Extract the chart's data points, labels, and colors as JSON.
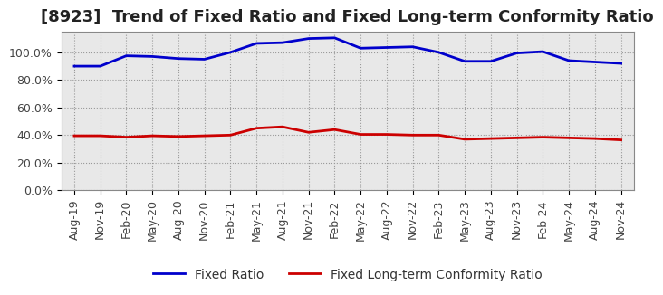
{
  "title": "[8923]  Trend of Fixed Ratio and Fixed Long-term Conformity Ratio",
  "x_labels": [
    "Aug-19",
    "Nov-19",
    "Feb-20",
    "May-20",
    "Aug-20",
    "Nov-20",
    "Feb-21",
    "May-21",
    "Aug-21",
    "Nov-21",
    "Feb-22",
    "May-22",
    "Aug-22",
    "Nov-22",
    "Feb-23",
    "May-23",
    "Aug-23",
    "Nov-23",
    "Feb-24",
    "May-24",
    "Aug-24",
    "Nov-24"
  ],
  "fixed_ratio": [
    90.0,
    90.0,
    97.5,
    97.0,
    95.5,
    95.0,
    100.0,
    106.5,
    107.0,
    110.0,
    110.5,
    103.0,
    103.5,
    104.0,
    100.0,
    93.5,
    93.5,
    99.5,
    100.5,
    94.0,
    93.0,
    92.0
  ],
  "fixed_lt_ratio": [
    39.5,
    39.5,
    38.5,
    39.5,
    39.0,
    39.5,
    40.0,
    45.0,
    46.0,
    42.0,
    44.0,
    40.5,
    40.5,
    40.0,
    40.0,
    37.0,
    37.5,
    38.0,
    38.5,
    38.0,
    37.5,
    36.5
  ],
  "fixed_ratio_color": "#0000cc",
  "fixed_lt_ratio_color": "#cc0000",
  "background_color": "#ffffff",
  "plot_bg_color": "#e8e8e8",
  "grid_color": "#999999",
  "ylim": [
    0,
    115
  ],
  "yticks": [
    0,
    20,
    40,
    60,
    80,
    100
  ],
  "ytick_labels": [
    "0.0%",
    "20.0%",
    "40.0%",
    "60.0%",
    "80.0%",
    "100.0%"
  ],
  "legend_fixed_ratio": "Fixed Ratio",
  "legend_fixed_lt_ratio": "Fixed Long-term Conformity Ratio",
  "line_width": 2.0,
  "title_fontsize": 13,
  "tick_fontsize": 9,
  "legend_fontsize": 10
}
